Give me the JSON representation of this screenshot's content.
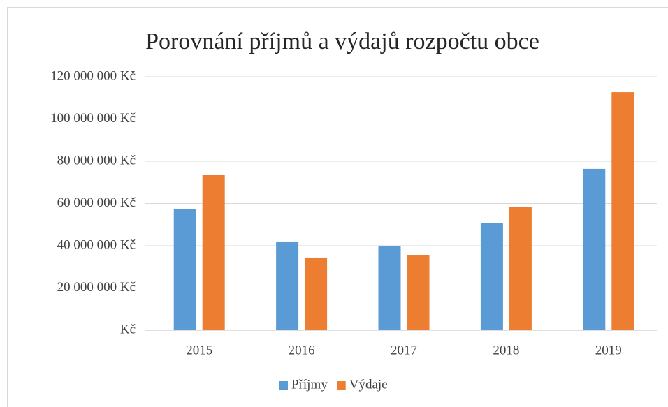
{
  "chart_data": {
    "type": "bar",
    "title": "Porovnání příjmů a výdajů rozpočtu obce",
    "categories": [
      "2015",
      "2016",
      "2017",
      "2018",
      "2019"
    ],
    "series": [
      {
        "name": "Příjmy",
        "color": "#5b9bd5",
        "values": [
          57500000,
          42000000,
          39700000,
          50900000,
          76400000
        ]
      },
      {
        "name": "Výdaje",
        "color": "#ed7d31",
        "values": [
          73700000,
          34400000,
          35700000,
          58500000,
          112700000
        ]
      }
    ],
    "ylim": [
      0,
      120000000
    ],
    "yticks": [
      {
        "value": 0,
        "label": "Kč"
      },
      {
        "value": 20000000,
        "label": "20 000 000 Kč"
      },
      {
        "value": 40000000,
        "label": "40 000 000 Kč"
      },
      {
        "value": 60000000,
        "label": "60 000 000 Kč"
      },
      {
        "value": 80000000,
        "label": "80 000 000 Kč"
      },
      {
        "value": 100000000,
        "label": "100 000 000 Kč"
      },
      {
        "value": 120000000,
        "label": "120 000 000 Kč"
      }
    ],
    "grid": true,
    "legend": "bottom"
  }
}
